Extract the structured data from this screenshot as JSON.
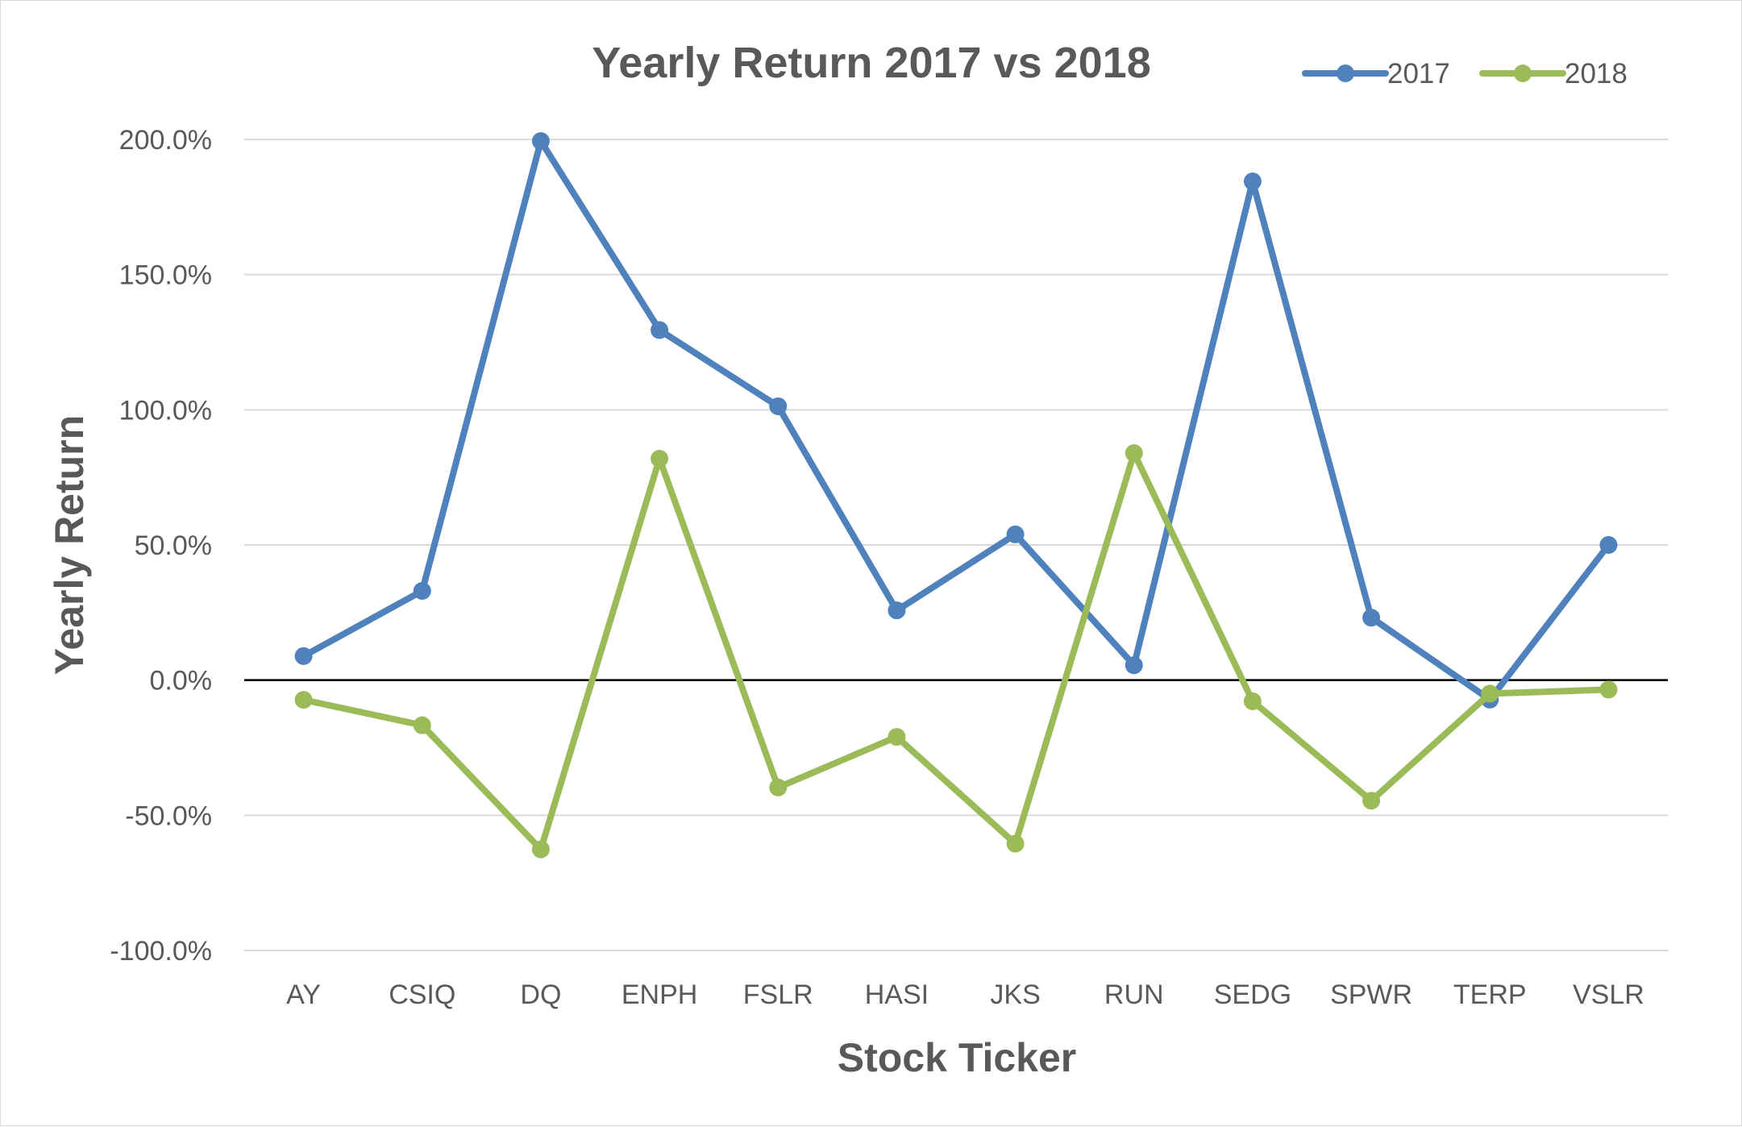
{
  "chart_data": {
    "type": "line",
    "title": "Yearly Return 2017 vs 2018",
    "xlabel": "Stock Ticker",
    "ylabel": "Yearly Return",
    "categories": [
      "AY",
      "CSIQ",
      "DQ",
      "ENPH",
      "FSLR",
      "HASI",
      "JKS",
      "RUN",
      "SEDG",
      "SPWR",
      "TERP",
      "VSLR"
    ],
    "ylim": [
      -100,
      200
    ],
    "yticks": [
      200,
      150,
      100,
      50,
      0,
      -50,
      -100
    ],
    "ytick_labels": [
      "200.0%",
      "150.0%",
      "100.0%",
      "50.0%",
      "0.0%",
      "-50.0%",
      "-100.0%"
    ],
    "grid": true,
    "legend_position": "top-right",
    "series": [
      {
        "name": "2017",
        "color": "#4f81bd",
        "values": [
          8.9,
          33.0,
          199.4,
          129.5,
          101.3,
          25.8,
          53.9,
          5.5,
          184.5,
          23.1,
          -7.2,
          50.0
        ]
      },
      {
        "name": "2018",
        "color": "#9bbb59",
        "values": [
          -7.3,
          -16.7,
          -62.6,
          81.9,
          -39.7,
          -21.0,
          -60.5,
          84.0,
          -7.8,
          -44.6,
          -5.0,
          -3.5
        ]
      }
    ]
  }
}
